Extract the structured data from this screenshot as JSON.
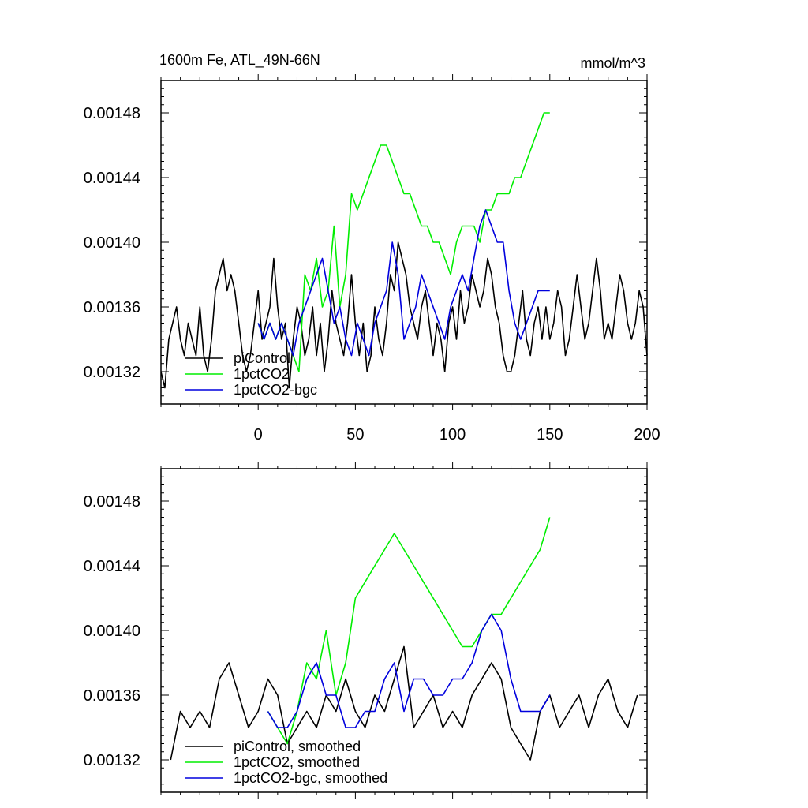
{
  "figure": {
    "title_left": "1600m Fe, ATL_49N-66N",
    "title_right": "mmol/m^3"
  },
  "chart_data": [
    {
      "type": "line",
      "title": "1600m Fe, ATL_49N-66N",
      "units": "mmol/m^3",
      "xlim": [
        -50,
        200
      ],
      "ylim": [
        0.0013,
        0.0015
      ],
      "x_ticks": [
        0,
        50,
        100,
        150,
        200
      ],
      "x_tick_labels": [
        "0",
        "50",
        "100",
        "150",
        "200"
      ],
      "y_ticks": [
        0.00132,
        0.00136,
        0.0014,
        0.00144,
        0.00148
      ],
      "y_tick_labels": [
        "0.00132",
        "0.00136",
        "0.00140",
        "0.00144",
        "0.00148"
      ],
      "legend_position": "bottom-left",
      "series": [
        {
          "name": "piControl",
          "color": "#000000",
          "x": [
            -50,
            -48,
            -46,
            -44,
            -42,
            -40,
            -38,
            -36,
            -34,
            -32,
            -30,
            -28,
            -26,
            -24,
            -22,
            -20,
            -18,
            -16,
            -14,
            -12,
            -10,
            -8,
            -6,
            -4,
            -2,
            0,
            2,
            4,
            6,
            8,
            10,
            12,
            14,
            16,
            18,
            20,
            22,
            24,
            26,
            28,
            30,
            32,
            34,
            36,
            38,
            40,
            42,
            44,
            46,
            48,
            50,
            52,
            54,
            56,
            58,
            60,
            62,
            64,
            66,
            68,
            70,
            72,
            74,
            76,
            78,
            80,
            82,
            84,
            86,
            88,
            90,
            92,
            94,
            96,
            98,
            100,
            102,
            104,
            106,
            108,
            110,
            112,
            114,
            116,
            118,
            120,
            122,
            124,
            126,
            128,
            130,
            132,
            134,
            136,
            138,
            140,
            142,
            144,
            146,
            148,
            150,
            152,
            154,
            156,
            158,
            160,
            162,
            164,
            166,
            168,
            170,
            172,
            174,
            176,
            178,
            180,
            182,
            184,
            186,
            188,
            190,
            192,
            194,
            196,
            198,
            200
          ],
          "y": [
            0.00132,
            0.00131,
            0.00134,
            0.00135,
            0.00136,
            0.00134,
            0.00133,
            0.00135,
            0.00134,
            0.00133,
            0.00136,
            0.00133,
            0.00132,
            0.00134,
            0.00137,
            0.00138,
            0.00139,
            0.00137,
            0.00138,
            0.00137,
            0.00135,
            0.00133,
            0.00132,
            0.00133,
            0.00135,
            0.00137,
            0.00134,
            0.00135,
            0.00136,
            0.00139,
            0.00136,
            0.00134,
            0.00135,
            0.00131,
            0.00134,
            0.00136,
            0.00135,
            0.00133,
            0.00134,
            0.00136,
            0.00133,
            0.00135,
            0.00132,
            0.00134,
            0.00137,
            0.00135,
            0.00134,
            0.00133,
            0.00135,
            0.00138,
            0.00135,
            0.00133,
            0.00135,
            0.00132,
            0.00133,
            0.00136,
            0.00134,
            0.00133,
            0.00135,
            0.00138,
            0.00137,
            0.0014,
            0.00139,
            0.00138,
            0.00136,
            0.00135,
            0.00134,
            0.00136,
            0.00137,
            0.00135,
            0.00133,
            0.00135,
            0.00134,
            0.00132,
            0.00135,
            0.00136,
            0.00134,
            0.00137,
            0.00135,
            0.00136,
            0.00138,
            0.00137,
            0.00136,
            0.00137,
            0.00139,
            0.00138,
            0.00136,
            0.00135,
            0.00133,
            0.00132,
            0.00132,
            0.00133,
            0.00135,
            0.00137,
            0.00134,
            0.00133,
            0.00135,
            0.00136,
            0.00134,
            0.00136,
            0.00134,
            0.00135,
            0.00137,
            0.00136,
            0.00133,
            0.00134,
            0.00136,
            0.00138,
            0.00136,
            0.00134,
            0.00135,
            0.00137,
            0.00139,
            0.00137,
            0.00134,
            0.00135,
            0.00134,
            0.00136,
            0.00138,
            0.00137,
            0.00135,
            0.00134,
            0.00135,
            0.00137,
            0.00136,
            0.00133
          ]
        },
        {
          "name": "1pctCO2",
          "color": "#00ee00",
          "x": [
            0,
            3,
            6,
            9,
            12,
            15,
            18,
            21,
            24,
            27,
            30,
            33,
            36,
            39,
            42,
            45,
            48,
            51,
            54,
            57,
            60,
            63,
            66,
            69,
            72,
            75,
            78,
            81,
            84,
            87,
            90,
            93,
            96,
            99,
            102,
            105,
            108,
            111,
            114,
            117,
            120,
            123,
            126,
            129,
            132,
            135,
            138,
            141,
            144,
            147,
            150
          ],
          "y": [
            0.00135,
            0.00134,
            0.00135,
            0.00134,
            0.00135,
            0.00134,
            0.00133,
            0.00132,
            0.00138,
            0.00137,
            0.00139,
            0.00136,
            0.00137,
            0.00141,
            0.00136,
            0.00138,
            0.00143,
            0.00142,
            0.00143,
            0.00144,
            0.00145,
            0.00146,
            0.00146,
            0.00145,
            0.00144,
            0.00143,
            0.00143,
            0.00142,
            0.00141,
            0.00141,
            0.0014,
            0.0014,
            0.00139,
            0.00138,
            0.0014,
            0.00141,
            0.00141,
            0.00141,
            0.0014,
            0.00142,
            0.00142,
            0.00143,
            0.00143,
            0.00143,
            0.00144,
            0.00144,
            0.00145,
            0.00146,
            0.00147,
            0.00148,
            0.00148
          ]
        },
        {
          "name": "1pctCO2-bgc",
          "color": "#0000dd",
          "x": [
            0,
            3,
            6,
            9,
            12,
            15,
            18,
            21,
            24,
            27,
            30,
            33,
            36,
            39,
            42,
            45,
            48,
            51,
            54,
            57,
            60,
            63,
            66,
            69,
            72,
            75,
            78,
            81,
            84,
            87,
            90,
            93,
            96,
            99,
            102,
            105,
            108,
            111,
            114,
            117,
            120,
            123,
            126,
            129,
            132,
            135,
            138,
            141,
            144,
            147,
            150
          ],
          "y": [
            0.00135,
            0.00134,
            0.00135,
            0.00134,
            0.00135,
            0.00134,
            0.00133,
            0.00135,
            0.00136,
            0.00137,
            0.00138,
            0.00139,
            0.00137,
            0.00135,
            0.00136,
            0.00134,
            0.00133,
            0.00135,
            0.00134,
            0.00133,
            0.00135,
            0.00136,
            0.00137,
            0.0014,
            0.00138,
            0.00134,
            0.00135,
            0.00136,
            0.00138,
            0.00137,
            0.00136,
            0.00135,
            0.00134,
            0.00136,
            0.00137,
            0.00138,
            0.00137,
            0.00139,
            0.00141,
            0.00142,
            0.00141,
            0.0014,
            0.0014,
            0.00137,
            0.00135,
            0.00134,
            0.00135,
            0.00136,
            0.00137,
            0.00137,
            0.00137
          ]
        }
      ]
    },
    {
      "type": "line",
      "title": "",
      "xlim": [
        -50,
        200
      ],
      "ylim": [
        0.0013,
        0.0015
      ],
      "y_ticks": [
        0.00132,
        0.00136,
        0.0014,
        0.00144,
        0.00148
      ],
      "y_tick_labels": [
        "0.00132",
        "0.00136",
        "0.00140",
        "0.00144",
        "0.00148"
      ],
      "legend_position": "bottom-left",
      "series": [
        {
          "name": "piControl, smoothed",
          "color": "#000000",
          "x": [
            -45,
            -40,
            -35,
            -30,
            -25,
            -20,
            -15,
            -10,
            -5,
            0,
            5,
            10,
            15,
            20,
            25,
            30,
            35,
            40,
            45,
            50,
            55,
            60,
            65,
            70,
            75,
            80,
            85,
            90,
            95,
            100,
            105,
            110,
            115,
            120,
            125,
            130,
            135,
            140,
            145,
            150,
            155,
            160,
            165,
            170,
            175,
            180,
            185,
            190,
            195
          ],
          "y": [
            0.00132,
            0.00135,
            0.00134,
            0.00135,
            0.00134,
            0.00137,
            0.00138,
            0.00136,
            0.00134,
            0.00135,
            0.00137,
            0.00136,
            0.00133,
            0.00134,
            0.00135,
            0.00134,
            0.00136,
            0.00135,
            0.00137,
            0.00135,
            0.00134,
            0.00136,
            0.00135,
            0.00137,
            0.00139,
            0.00134,
            0.00135,
            0.00136,
            0.00134,
            0.00135,
            0.00134,
            0.00136,
            0.00137,
            0.00138,
            0.00137,
            0.00134,
            0.00133,
            0.00132,
            0.00135,
            0.00136,
            0.00134,
            0.00135,
            0.00136,
            0.00134,
            0.00136,
            0.00137,
            0.00135,
            0.00134,
            0.00136
          ]
        },
        {
          "name": "1pctCO2, smoothed",
          "color": "#00ee00",
          "x": [
            5,
            10,
            15,
            20,
            25,
            30,
            35,
            40,
            45,
            50,
            55,
            60,
            65,
            70,
            75,
            80,
            85,
            90,
            95,
            100,
            105,
            110,
            115,
            120,
            125,
            130,
            135,
            140,
            145,
            150
          ],
          "y": [
            0.00135,
            0.00134,
            0.00133,
            0.00135,
            0.00138,
            0.00137,
            0.0014,
            0.00136,
            0.00138,
            0.00142,
            0.00143,
            0.00144,
            0.00145,
            0.00146,
            0.00145,
            0.00144,
            0.00143,
            0.00142,
            0.00141,
            0.0014,
            0.00139,
            0.00139,
            0.0014,
            0.00141,
            0.00141,
            0.00142,
            0.00143,
            0.00144,
            0.00145,
            0.00147
          ]
        },
        {
          "name": "1pctCO2-bgc, smoothed",
          "color": "#0000dd",
          "x": [
            5,
            10,
            15,
            20,
            25,
            30,
            35,
            40,
            45,
            50,
            55,
            60,
            65,
            70,
            75,
            80,
            85,
            90,
            95,
            100,
            105,
            110,
            115,
            120,
            125,
            130,
            135,
            140,
            145,
            150
          ],
          "y": [
            0.00135,
            0.00134,
            0.00134,
            0.00135,
            0.00137,
            0.00138,
            0.00136,
            0.00136,
            0.00134,
            0.00134,
            0.00135,
            0.00135,
            0.00137,
            0.00138,
            0.00135,
            0.00137,
            0.00137,
            0.00136,
            0.00136,
            0.00137,
            0.00137,
            0.00138,
            0.0014,
            0.00141,
            0.0014,
            0.00137,
            0.00135,
            0.00135,
            0.00135,
            0.00136
          ]
        }
      ]
    }
  ]
}
